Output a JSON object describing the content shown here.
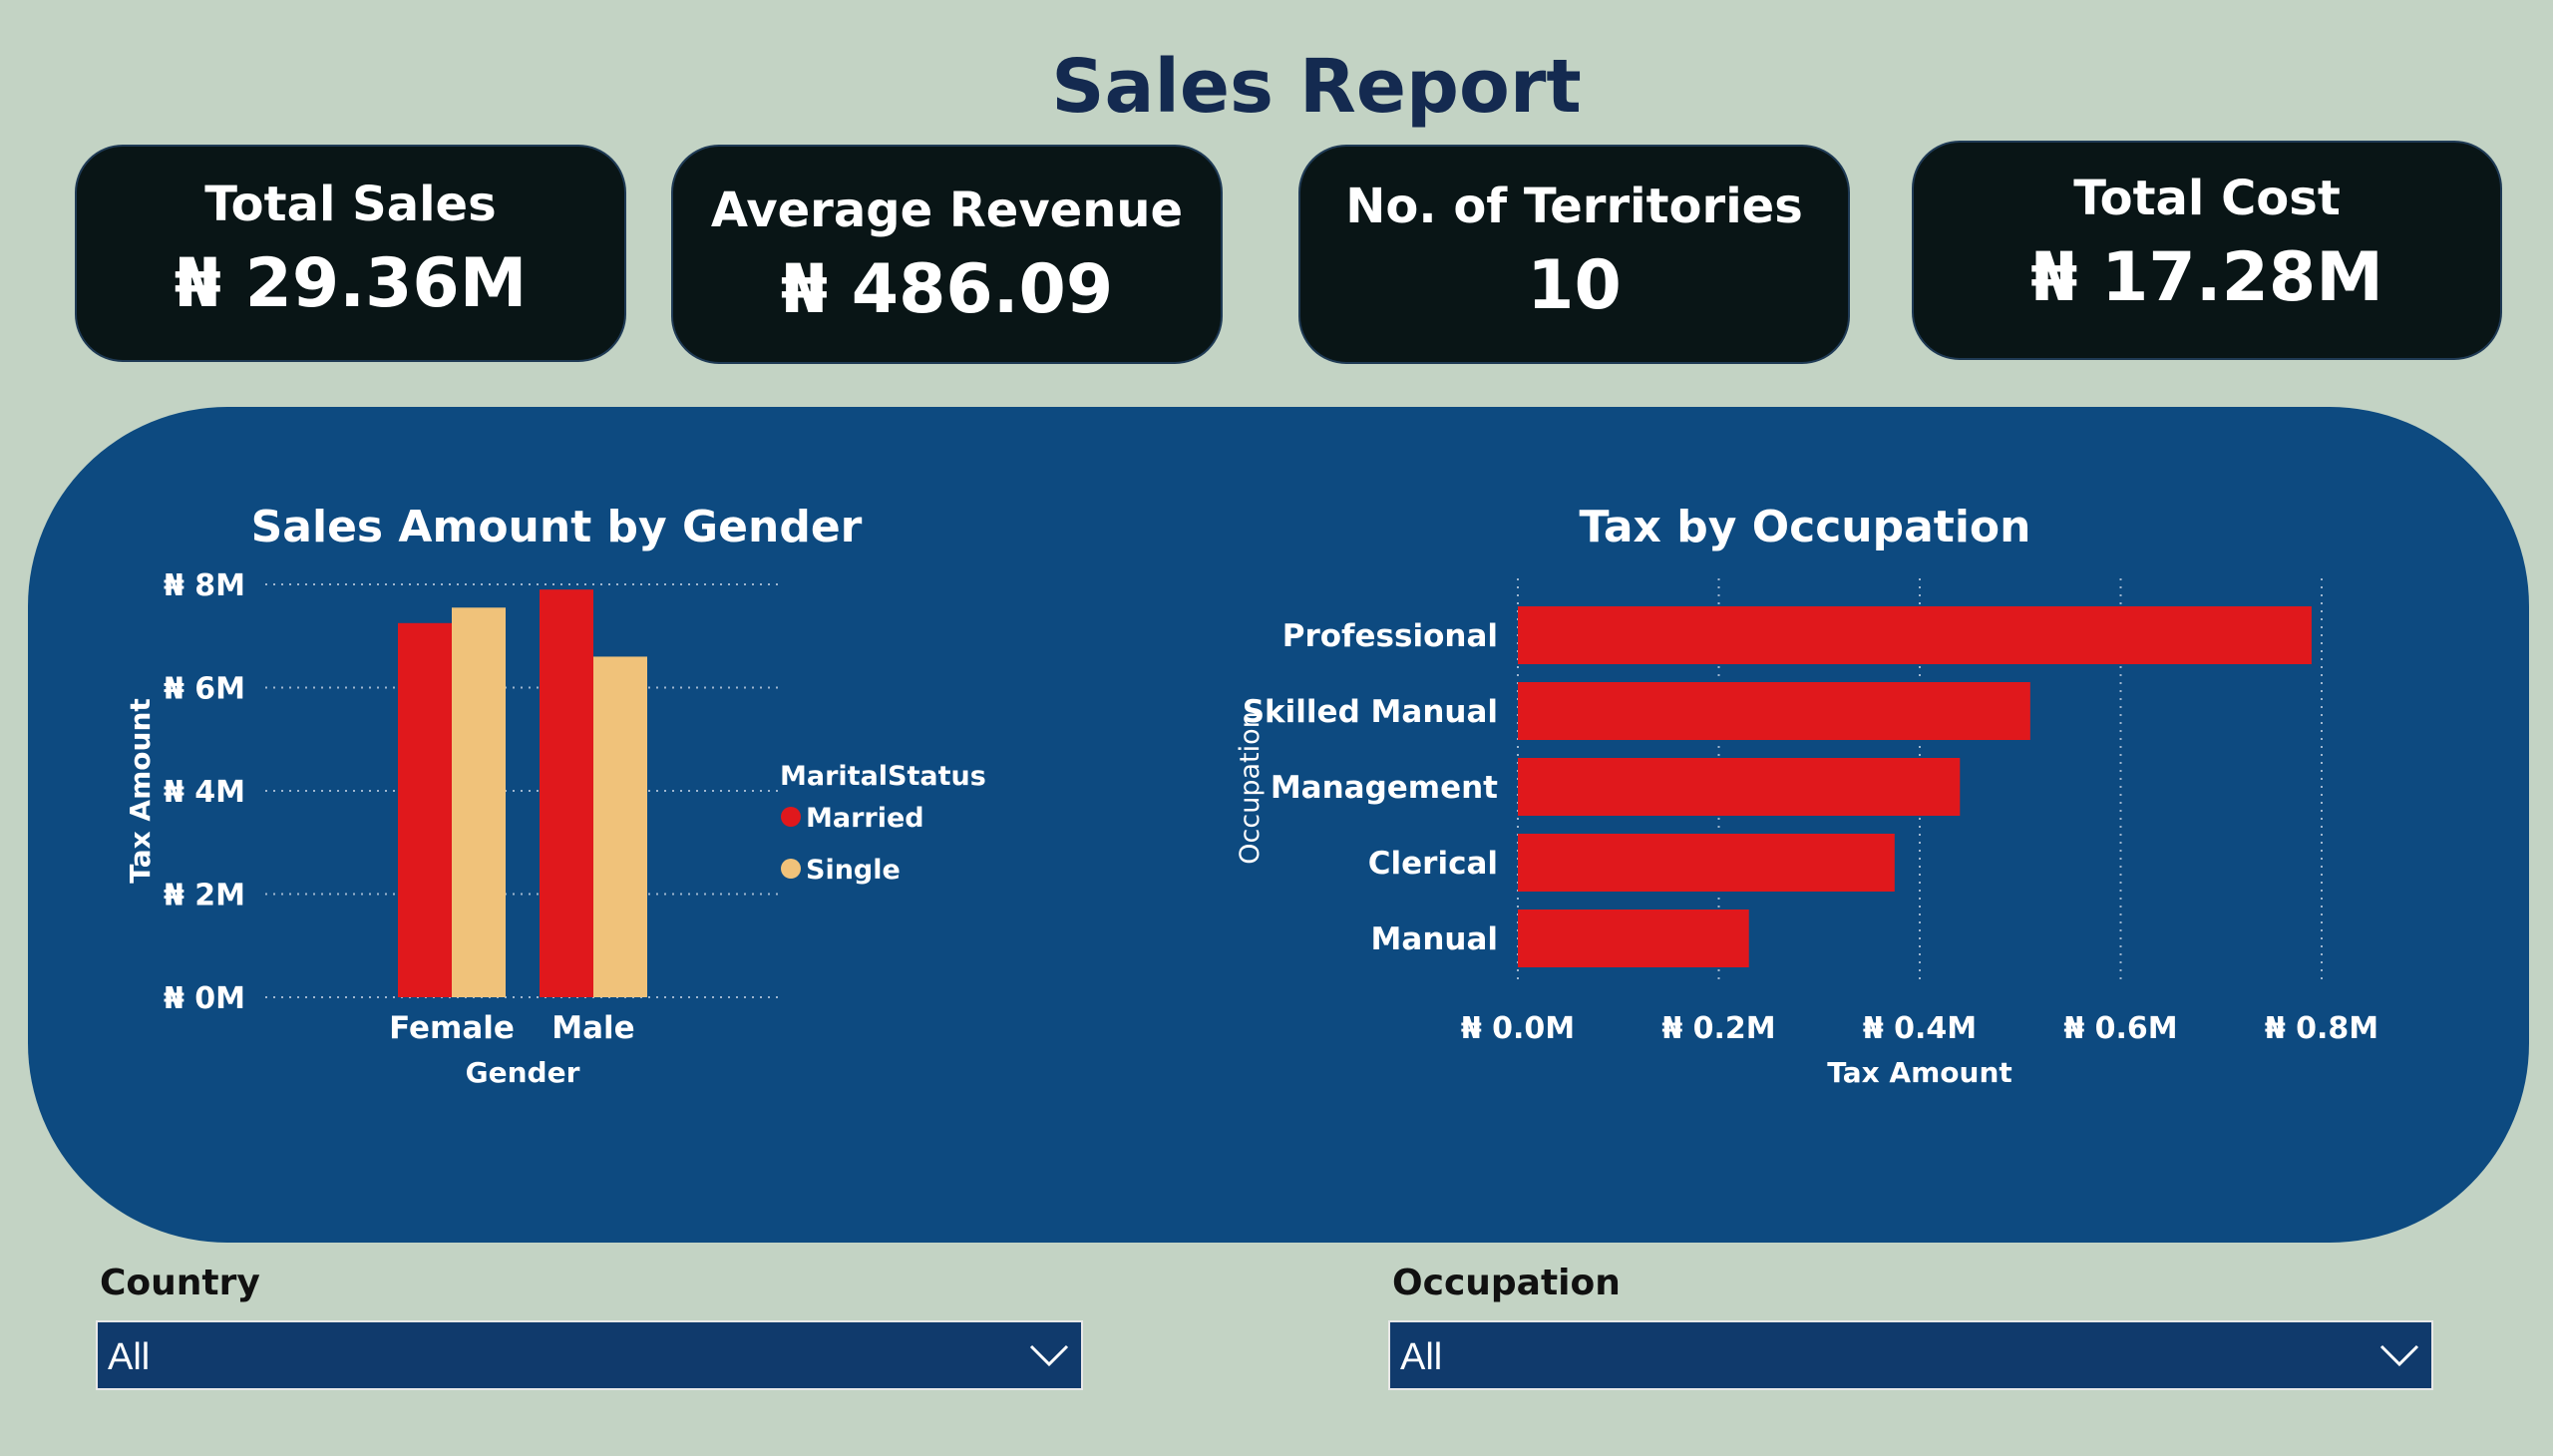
{
  "page_title": "Sales Report",
  "kpis": [
    {
      "label": "Total Sales",
      "value": "₦ 29.36M"
    },
    {
      "label": "Average Revenue",
      "value": "₦ 486.09"
    },
    {
      "label": "No. of Territories",
      "value": "10"
    },
    {
      "label": "Total Cost",
      "value": "₦ 17.28M"
    }
  ],
  "slicers": {
    "country": {
      "label": "Country",
      "value": "All"
    },
    "occupation": {
      "label": "Occupation",
      "value": "All"
    }
  },
  "colors": {
    "married": "#e0181c",
    "single": "#f0c27a",
    "bar": "#e0181c",
    "panel": "#0d4a80",
    "background": "#c3d3c4"
  },
  "chart_data": [
    {
      "type": "bar",
      "title": "Sales Amount by Gender",
      "xlabel": "Gender",
      "ylabel": "Tax Amount",
      "categories": [
        "Female",
        "Male"
      ],
      "series": [
        {
          "name": "Married",
          "values": [
            7.25,
            7.9
          ]
        },
        {
          "name": "Single",
          "values": [
            7.55,
            6.6
          ]
        }
      ],
      "ylim": [
        0,
        8
      ],
      "yticks": [
        "₦ 0M",
        "₦ 2M",
        "₦ 4M",
        "₦ 6M",
        "₦ 8M"
      ],
      "unit": "M",
      "legend_title": "MaritalStatus",
      "legend": "right",
      "grid": true
    },
    {
      "type": "bar",
      "orientation": "horizontal",
      "title": "Tax by Occupation",
      "xlabel": "Tax Amount",
      "ylabel": "Occupation",
      "categories": [
        "Professional",
        "Skilled Manual",
        "Management",
        "Clerical",
        "Manual"
      ],
      "values": [
        0.79,
        0.51,
        0.44,
        0.375,
        0.23
      ],
      "xlim": [
        0,
        0.8
      ],
      "xticks": [
        "₦ 0.0M",
        "₦ 0.2M",
        "₦ 0.4M",
        "₦ 0.6M",
        "₦ 0.8M"
      ],
      "unit": "M",
      "grid": true
    }
  ]
}
